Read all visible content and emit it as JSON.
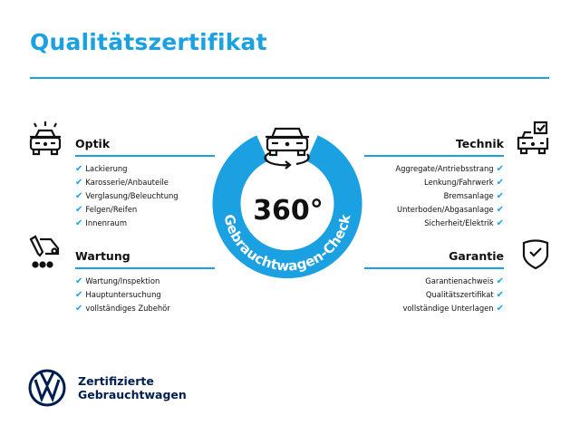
{
  "title": "Qualitätszertifikat",
  "center": {
    "number": "360°",
    "ring_text": "Gebrauchtwagen-Check"
  },
  "sections": {
    "optik": {
      "heading": "Optik",
      "items": [
        "Lackierung",
        "Karosserie/Anbauteile",
        "Verglasung/Beleuchtung",
        "Felgen/Reifen",
        "Innenraum"
      ]
    },
    "wartung": {
      "heading": "Wartung",
      "items": [
        "Wartung/Inspektion",
        "Hauptuntersuchung",
        "vollständiges Zubehör"
      ]
    },
    "technik": {
      "heading": "Technik",
      "items": [
        "Aggregate/Antriebsstrang",
        "Lenkung/Fahrwerk",
        "Bremsanlage",
        "Unterboden/Abgasanlage",
        "Sicherheit/Elektrik"
      ]
    },
    "garantie": {
      "heading": "Garantie",
      "items": [
        "Garantienachweis",
        "Qualitätszertifikat",
        "vollständige Unterlagen"
      ]
    }
  },
  "check_glyph": "✔",
  "brand": {
    "line1": "Zertifizierte",
    "line2": "Gebrauchtwagen",
    "logo": "VW"
  },
  "colors": {
    "accent": "#1ba1e2",
    "brand_navy": "#001e50"
  }
}
